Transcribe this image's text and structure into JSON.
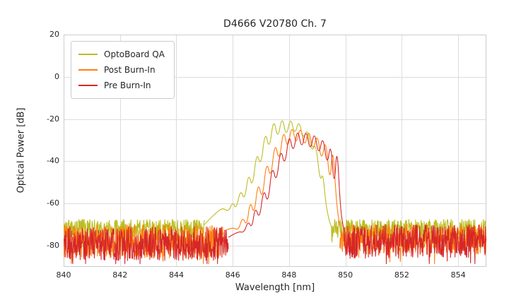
{
  "chart_data": {
    "type": "line",
    "title": "D4666 V20780 Ch. 7",
    "xlabel": "Wavelength [nm]",
    "ylabel": "Optical Power [dB]",
    "xlim": [
      840,
      855
    ],
    "ylim": [
      -90,
      20
    ],
    "xticks": [
      840,
      842,
      844,
      846,
      848,
      850,
      852,
      854
    ],
    "yticks": [
      20,
      0,
      -20,
      -40,
      -60,
      -80
    ],
    "grid": true,
    "grid_color": "#dddddd",
    "spine_color": "#cccccc",
    "legend_position": "upper left",
    "series": [
      {
        "name": "OptoBoard QA",
        "color": "#bcbd22",
        "noise": [
          {
            "x0": 840.0,
            "x1": 845.0,
            "mean": -72,
            "amp": 4.5
          },
          {
            "x0": 849.5,
            "x1": 855.0,
            "mean": -72,
            "amp": 4.5
          }
        ],
        "curve": [
          [
            845.0,
            -70
          ],
          [
            845.2,
            -67
          ],
          [
            845.45,
            -64
          ],
          [
            845.65,
            -62
          ],
          [
            845.85,
            -64
          ],
          [
            846.0,
            -59
          ],
          [
            846.12,
            -63
          ],
          [
            846.28,
            -53
          ],
          [
            846.42,
            -59
          ],
          [
            846.56,
            -45
          ],
          [
            846.7,
            -53
          ],
          [
            846.85,
            -35
          ],
          [
            847.0,
            -43
          ],
          [
            847.15,
            -25
          ],
          [
            847.3,
            -35
          ],
          [
            847.45,
            -19
          ],
          [
            847.6,
            -30
          ],
          [
            847.75,
            -18
          ],
          [
            847.9,
            -29
          ],
          [
            848.05,
            -18.5
          ],
          [
            848.2,
            -28
          ],
          [
            848.35,
            -20
          ],
          [
            848.5,
            -30
          ],
          [
            848.65,
            -24
          ],
          [
            848.8,
            -36
          ],
          [
            848.95,
            -31
          ],
          [
            849.1,
            -50
          ],
          [
            849.2,
            -45
          ],
          [
            849.3,
            -60
          ],
          [
            849.42,
            -68
          ],
          [
            849.5,
            -71
          ]
        ]
      },
      {
        "name": "Post Burn-In",
        "color": "#ff7f0e",
        "noise": [
          {
            "x0": 840.0,
            "x1": 845.7,
            "mean": -78,
            "amp": 8
          },
          {
            "x0": 849.8,
            "x1": 855.0,
            "mean": -77,
            "amp": 7
          }
        ],
        "curve": [
          [
            845.7,
            -73
          ],
          [
            846.0,
            -71
          ],
          [
            846.2,
            -73
          ],
          [
            846.35,
            -66
          ],
          [
            846.5,
            -71
          ],
          [
            846.62,
            -58
          ],
          [
            846.76,
            -66
          ],
          [
            846.9,
            -49
          ],
          [
            847.05,
            -59
          ],
          [
            847.2,
            -39
          ],
          [
            847.35,
            -49
          ],
          [
            847.5,
            -30
          ],
          [
            847.65,
            -41
          ],
          [
            847.8,
            -24
          ],
          [
            847.95,
            -35
          ],
          [
            848.1,
            -22
          ],
          [
            848.25,
            -33
          ],
          [
            848.4,
            -22.5
          ],
          [
            848.55,
            -34
          ],
          [
            848.7,
            -24
          ],
          [
            848.85,
            -36
          ],
          [
            849.0,
            -26
          ],
          [
            849.15,
            -41
          ],
          [
            849.3,
            -28
          ],
          [
            849.45,
            -52
          ],
          [
            849.55,
            -31
          ],
          [
            849.68,
            -60
          ],
          [
            849.8,
            -71
          ]
        ]
      },
      {
        "name": "Pre Burn-In",
        "color": "#d62728",
        "noise": [
          {
            "x0": 840.0,
            "x1": 845.85,
            "mean": -79,
            "amp": 8
          },
          {
            "x0": 849.95,
            "x1": 855.0,
            "mean": -78,
            "amp": 8
          }
        ],
        "curve": [
          [
            845.85,
            -76
          ],
          [
            846.2,
            -73
          ],
          [
            846.4,
            -74
          ],
          [
            846.55,
            -68
          ],
          [
            846.68,
            -72
          ],
          [
            846.8,
            -61
          ],
          [
            846.95,
            -68
          ],
          [
            847.1,
            -52
          ],
          [
            847.25,
            -61
          ],
          [
            847.4,
            -41
          ],
          [
            847.55,
            -51
          ],
          [
            847.7,
            -33
          ],
          [
            847.85,
            -43
          ],
          [
            848.0,
            -26
          ],
          [
            848.15,
            -37
          ],
          [
            848.3,
            -23.5
          ],
          [
            848.45,
            -35
          ],
          [
            848.6,
            -24
          ],
          [
            848.75,
            -36
          ],
          [
            848.9,
            -25
          ],
          [
            849.05,
            -38
          ],
          [
            849.2,
            -27
          ],
          [
            849.35,
            -43
          ],
          [
            849.48,
            -30
          ],
          [
            849.6,
            -54
          ],
          [
            849.7,
            -31
          ],
          [
            849.82,
            -63
          ],
          [
            849.95,
            -73
          ]
        ]
      }
    ]
  }
}
